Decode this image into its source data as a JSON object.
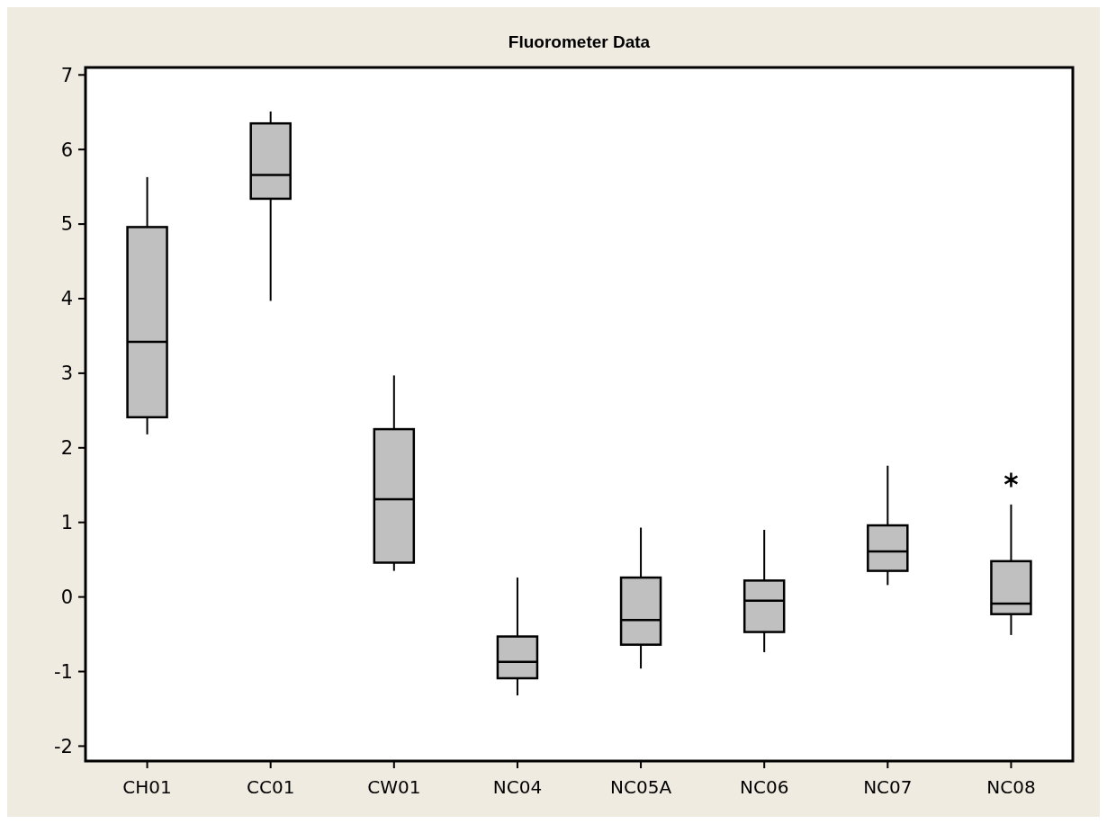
{
  "chart_data": {
    "type": "box",
    "title": "Fluorometer Data",
    "categories": [
      "CH01",
      "CC01",
      "CW01",
      "NC04",
      "NC05A",
      "NC06",
      "NC07",
      "NC08"
    ],
    "color": "#c0c0c0",
    "ylim": [
      -2.2,
      7.1
    ],
    "yticks": [
      -2,
      -1,
      0,
      1,
      2,
      3,
      4,
      5,
      6,
      7
    ],
    "grid": false,
    "boxes": [
      {
        "low": 2.18,
        "q1": 2.41,
        "median": 3.42,
        "q3": 4.96,
        "high": 5.63
      },
      {
        "low": 3.97,
        "q1": 5.34,
        "median": 5.66,
        "q3": 6.35,
        "high": 6.51
      },
      {
        "low": 0.35,
        "q1": 0.46,
        "median": 1.31,
        "q3": 2.25,
        "high": 2.97
      },
      {
        "low": -1.32,
        "q1": -1.09,
        "median": -0.87,
        "q3": -0.53,
        "high": 0.26
      },
      {
        "low": -0.96,
        "q1": -0.64,
        "median": -0.31,
        "q3": 0.26,
        "high": 0.93
      },
      {
        "low": -0.74,
        "q1": -0.47,
        "median": -0.05,
        "q3": 0.22,
        "high": 0.9
      },
      {
        "low": 0.16,
        "q1": 0.35,
        "median": 0.61,
        "q3": 0.96,
        "high": 1.76
      },
      {
        "low": -0.51,
        "q1": -0.23,
        "median": -0.09,
        "q3": 0.48,
        "high": 1.24,
        "outliers": [
          1.57
        ]
      }
    ]
  }
}
